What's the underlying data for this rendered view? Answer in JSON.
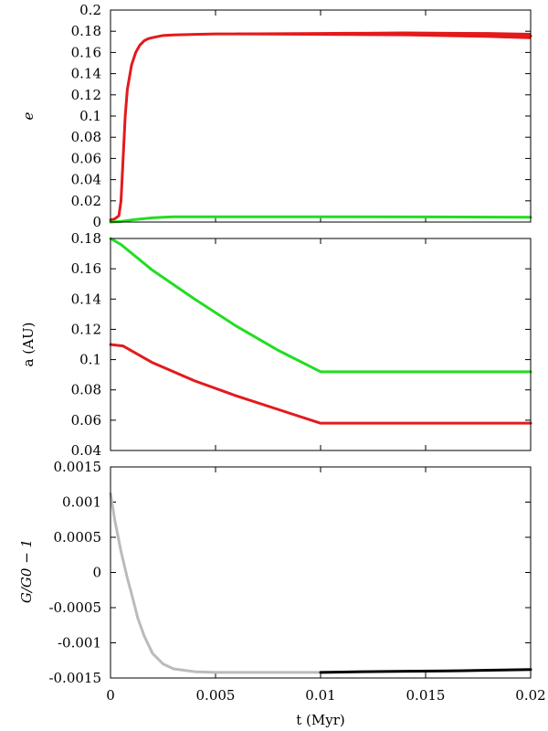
{
  "chart_data": [
    {
      "type": "line",
      "ylabel": "e",
      "xlim": [
        0,
        0.02
      ],
      "ylim": [
        0,
        0.2
      ],
      "xticks": [
        0,
        0.005,
        0.01,
        0.015,
        0.02
      ],
      "xtick_labels_shown": false,
      "yticks": [
        0,
        0.02,
        0.04,
        0.06,
        0.08,
        0.1,
        0.12,
        0.14,
        0.16,
        0.18,
        0.2
      ],
      "ytick_labels": [
        "0",
        "0.02",
        "0.04",
        "0.06",
        "0.08",
        "0.1",
        "0.12",
        "0.14",
        "0.16",
        "0.18",
        "0.2"
      ],
      "series": [
        {
          "color": "#e31a1c",
          "x": [
            0,
            0.0002,
            0.0004,
            0.0005,
            0.0006,
            0.0007,
            0.0008,
            0.001,
            0.0012,
            0.0014,
            0.0016,
            0.0018,
            0.002,
            0.0025,
            0.003,
            0.004,
            0.005,
            0.006,
            0.008,
            0.01,
            0.012,
            0.014,
            0.016,
            0.018,
            0.02
          ],
          "y": [
            0.002,
            0.003,
            0.006,
            0.02,
            0.06,
            0.1,
            0.125,
            0.148,
            0.16,
            0.167,
            0.171,
            0.173,
            0.174,
            0.176,
            0.1765,
            0.177,
            0.1775,
            0.1775,
            0.1775,
            0.1775,
            0.1775,
            0.1775,
            0.177,
            0.1765,
            0.1755
          ],
          "band": {
            "x_start": 0.006,
            "x_end": 0.02,
            "half_width": [
              0.0008,
              0.0025
            ]
          }
        },
        {
          "color": "#22dd22",
          "x": [
            0,
            0.0005,
            0.001,
            0.0015,
            0.002,
            0.0025,
            0.003,
            0.005,
            0.01,
            0.015,
            0.02
          ],
          "y": [
            0.0,
            0.0005,
            0.002,
            0.003,
            0.004,
            0.0045,
            0.005,
            0.005,
            0.005,
            0.0048,
            0.0045
          ]
        }
      ]
    },
    {
      "type": "line",
      "ylabel": "a (AU)",
      "xlim": [
        0,
        0.02
      ],
      "ylim": [
        0.04,
        0.18
      ],
      "xticks": [
        0,
        0.005,
        0.01,
        0.015,
        0.02
      ],
      "xtick_labels_shown": false,
      "yticks": [
        0.04,
        0.06,
        0.08,
        0.1,
        0.12,
        0.14,
        0.16,
        0.18
      ],
      "ytick_labels": [
        "0.04",
        "0.06",
        "0.08",
        "0.1",
        "0.12",
        "0.14",
        "0.16",
        "0.18"
      ],
      "series": [
        {
          "color": "#22dd22",
          "x": [
            0,
            0.0005,
            0.002,
            0.004,
            0.006,
            0.008,
            0.01,
            0.015,
            0.02
          ],
          "y": [
            0.18,
            0.176,
            0.159,
            0.14,
            0.122,
            0.106,
            0.092,
            0.092,
            0.092
          ]
        },
        {
          "color": "#e31a1c",
          "x": [
            0,
            0.0006,
            0.002,
            0.004,
            0.006,
            0.008,
            0.01,
            0.015,
            0.02
          ],
          "y": [
            0.11,
            0.109,
            0.098,
            0.086,
            0.076,
            0.067,
            0.058,
            0.058,
            0.058
          ]
        }
      ]
    },
    {
      "type": "line",
      "ylabel": "G/G0 − 1",
      "xlabel": "t (Myr)",
      "xlim": [
        0,
        0.02
      ],
      "ylim": [
        -0.0015,
        0.0015
      ],
      "xticks": [
        0,
        0.005,
        0.01,
        0.015,
        0.02
      ],
      "xtick_labels": [
        "0",
        "0.005",
        "0.01",
        "0.015",
        "0.02"
      ],
      "xtick_labels_shown": true,
      "yticks": [
        -0.0015,
        -0.001,
        -0.0005,
        0,
        0.0005,
        0.001,
        0.0015
      ],
      "ytick_labels": [
        "-0.0015",
        "-0.001",
        "-0.0005",
        "0",
        "0.0005",
        "0.001",
        "0.0015"
      ],
      "series": [
        {
          "color": "#bbbbbb",
          "x": [
            0,
            0.0002,
            0.0005,
            0.0008,
            0.001,
            0.0013,
            0.0016,
            0.002,
            0.0025,
            0.003,
            0.004,
            0.005,
            0.007,
            0.01
          ],
          "y": [
            0.00112,
            0.00075,
            0.0003,
            -8e-05,
            -0.0003,
            -0.00065,
            -0.0009,
            -0.00115,
            -0.0013,
            -0.00137,
            -0.00141,
            -0.00142,
            -0.00142,
            -0.00142
          ]
        },
        {
          "color": "#000000",
          "x": [
            0.01,
            0.012,
            0.014,
            0.016,
            0.018,
            0.02
          ],
          "y": [
            -0.00142,
            -0.00141,
            -0.001405,
            -0.0014,
            -0.00139,
            -0.00138
          ]
        }
      ]
    }
  ]
}
